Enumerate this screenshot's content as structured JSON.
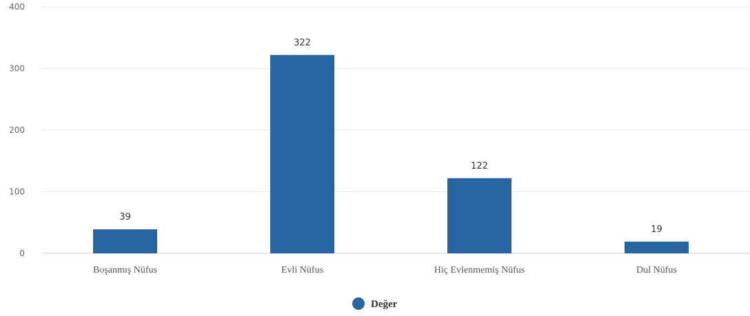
{
  "chart_data": {
    "type": "bar",
    "categories": [
      "Boşanmış Nüfus",
      "Evli Nüfus",
      "Hiç Evlenmemiş Nüfus",
      "Dul Nüfus"
    ],
    "series": [
      {
        "name": "Değer",
        "values": [
          39,
          322,
          122,
          19
        ],
        "color": "#2765a0"
      }
    ],
    "data_labels": [
      "39",
      "322",
      "122",
      "19"
    ],
    "y_ticks": [
      0,
      100,
      200,
      300,
      400
    ],
    "y_tick_labels": [
      "0",
      "100",
      "200",
      "300",
      "400"
    ],
    "ylim": [
      0,
      400
    ],
    "grid": true,
    "legend_position": "bottom-center",
    "title": "",
    "xlabel": "",
    "ylabel": ""
  }
}
